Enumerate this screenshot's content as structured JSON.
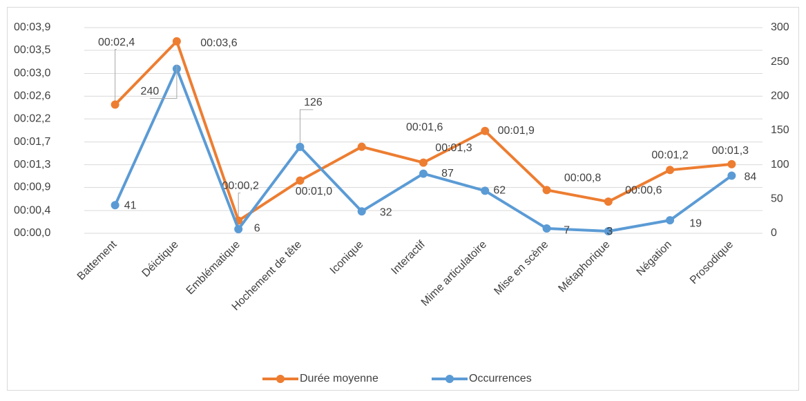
{
  "chart_data": {
    "type": "line",
    "categories": [
      "Battement",
      "Déictique",
      "Emblématique",
      "Hochement de tête",
      "Iconique",
      "Interactif",
      "Mime articulatoire",
      "Mise en scène",
      "Métaphorique",
      "Négation",
      "Prosodique"
    ],
    "series": [
      {
        "name": "Durée moyenne",
        "color": "#ed7d31",
        "values": [
          2.44,
          3.64,
          0.24,
          1.0,
          1.64,
          1.34,
          1.94,
          0.82,
          0.6,
          1.2,
          1.31
        ],
        "value_labels": [
          "00:02,4",
          "00:03,6",
          "00:00,2",
          "00:01,0",
          "00:01,6",
          "00:01,3",
          "00:01,9",
          "00:00,8",
          "00:00,6",
          "00:01,2",
          "00:01,3"
        ]
      },
      {
        "name": "Occurrences",
        "color": "#5b9bd5",
        "axis": "y2",
        "values": [
          41,
          240,
          6,
          126,
          32,
          87,
          62,
          7,
          3,
          19,
          84
        ]
      }
    ],
    "ylim": [
      0,
      3.9
    ],
    "yticks": [
      {
        "value": 0,
        "label": "00:00,0"
      },
      {
        "value": 0.43,
        "label": "00:00,4"
      },
      {
        "value": 0.87,
        "label": "00:00,9"
      },
      {
        "value": 1.3,
        "label": "00:01,3"
      },
      {
        "value": 1.73,
        "label": "00:01,7"
      },
      {
        "value": 2.17,
        "label": "00:02,2"
      },
      {
        "value": 2.6,
        "label": "00:02,6"
      },
      {
        "value": 3.03,
        "label": "00:03,0"
      },
      {
        "value": 3.47,
        "label": "00:03,5"
      },
      {
        "value": 3.9,
        "label": "00:03,9"
      }
    ],
    "y2lim": [
      0,
      300
    ],
    "y2ticks": [
      0,
      50,
      100,
      150,
      200,
      250,
      300
    ],
    "grid": true,
    "legend": "bottom"
  }
}
